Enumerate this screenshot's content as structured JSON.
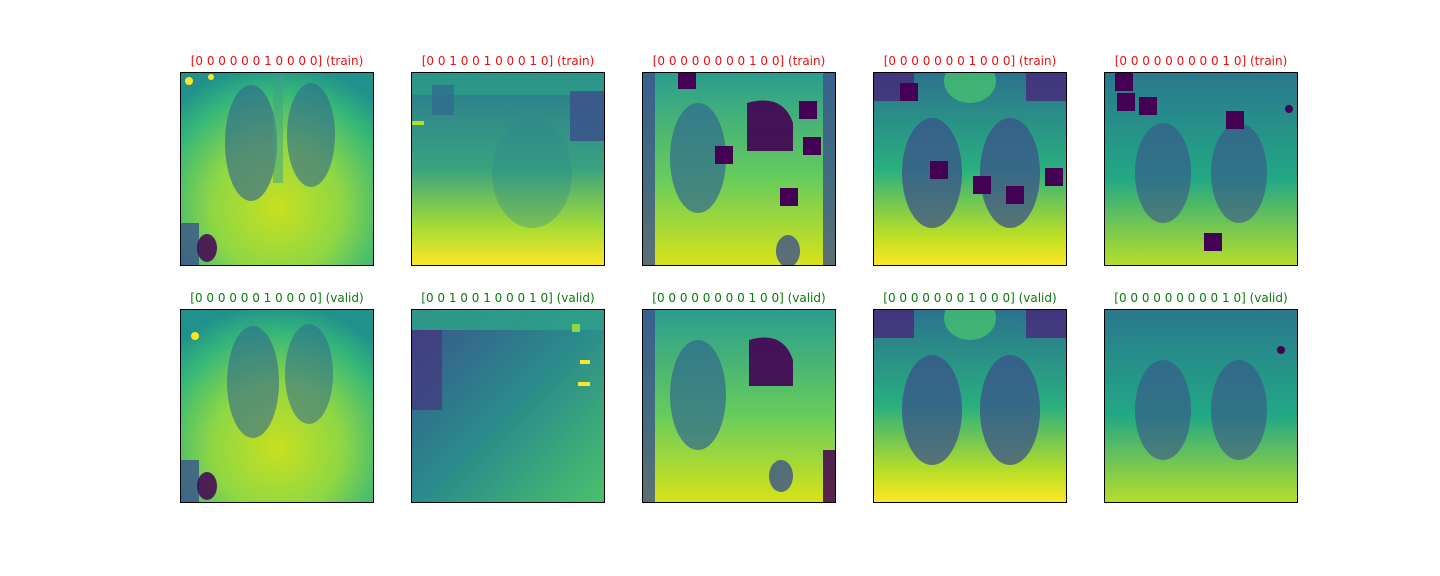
{
  "colors": {
    "train_title": "#e8100f",
    "valid_title": "#0a7a0a",
    "viridis_dark": "#440154",
    "viridis_blue": "#3b528b",
    "viridis_teal": "#21908d",
    "viridis_green": "#5dc863",
    "viridis_yellow": "#fde725"
  },
  "rows": [
    {
      "split": "train",
      "panels": [
        {
          "title": "[0 0 0 0 0 0 1 0 0 0 0] (train)",
          "image": "chest-xray-viridis",
          "mask_squares": 0
        },
        {
          "title": "[0 0 1 0 0 1 0 0 0 1 0] (train)",
          "image": "chest-xray-viridis",
          "mask_squares": 0
        },
        {
          "title": "[0 0 0 0 0 0 0 0 1 0 0] (train)",
          "image": "chest-xray-viridis",
          "mask_squares": 5
        },
        {
          "title": "[0 0 0 0 0 0 0 1 0 0 0] (train)",
          "image": "chest-xray-viridis",
          "mask_squares": 5
        },
        {
          "title": "[0 0 0 0 0 0 0 0 0 1 0] (train)",
          "image": "chest-xray-viridis",
          "mask_squares": 5
        }
      ]
    },
    {
      "split": "valid",
      "panels": [
        {
          "title": "[0 0 0 0 0 0 1 0 0 0 0] (valid)",
          "image": "chest-xray-viridis",
          "mask_squares": 0
        },
        {
          "title": "[0 0 1 0 0 1 0 0 0 1 0] (valid)",
          "image": "chest-xray-viridis",
          "mask_squares": 0
        },
        {
          "title": "[0 0 0 0 0 0 0 0 1 0 0] (valid)",
          "image": "chest-xray-viridis",
          "mask_squares": 0
        },
        {
          "title": "[0 0 0 0 0 0 0 1 0 0 0] (valid)",
          "image": "chest-xray-viridis",
          "mask_squares": 0
        },
        {
          "title": "[0 0 0 0 0 0 0 0 0 1 0] (valid)",
          "image": "chest-xray-viridis",
          "mask_squares": 0
        }
      ]
    }
  ]
}
